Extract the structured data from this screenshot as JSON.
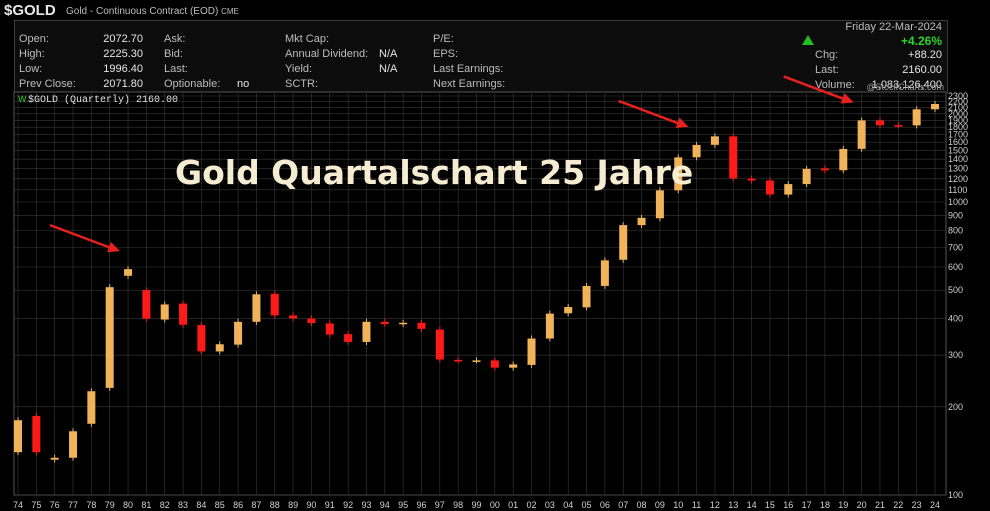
{
  "header": {
    "symbol": "$GOLD",
    "description": "Gold - Continuous Contract (EOD)",
    "exchange": "CME"
  },
  "quote": {
    "col1": [
      {
        "label": "Open:",
        "value": "2072.70"
      },
      {
        "label": "High:",
        "value": "2225.30"
      },
      {
        "label": "Low:",
        "value": "1996.40"
      },
      {
        "label": "Prev Close:",
        "value": "2071.80"
      }
    ],
    "col2": [
      {
        "label": "Ask:",
        "value": ""
      },
      {
        "label": "Bid:",
        "value": ""
      },
      {
        "label": "Last:",
        "value": ""
      },
      {
        "label": "Optionable:",
        "value": "no"
      }
    ],
    "col3": [
      {
        "label": "Mkt Cap:",
        "value": ""
      },
      {
        "label": "Annual Dividend:",
        "value": "N/A"
      },
      {
        "label": "Yield:",
        "value": "N/A"
      },
      {
        "label": "SCTR:",
        "value": ""
      }
    ],
    "col4": [
      {
        "label": "P/E:",
        "value": ""
      },
      {
        "label": "EPS:",
        "value": ""
      },
      {
        "label": "Last Earnings:",
        "value": ""
      },
      {
        "label": "Next Earnings:",
        "value": ""
      }
    ],
    "date": "Friday  22-Mar-2024",
    "change_pct": "+4.26%",
    "chg_label": "Chg:",
    "chg_value": "+88.20",
    "last_label": "Last:",
    "last_value": "2160.00",
    "volume_label": "Volume:",
    "volume_value": "1,083,126,400"
  },
  "legend": "$GOLD (Quarterly) 2160.00",
  "watermark": "@StockCharts.com",
  "overlay_title": "Gold Quartalschart 25 Jahre",
  "colors": {
    "up": "#f0b35a",
    "down": "#ff1a1a",
    "grid": "#3a3a3a",
    "arrow": "#e8201e",
    "title": "#f6ecd2"
  },
  "chart_data": {
    "type": "candlestick",
    "scale": "log",
    "ylim": [
      100,
      2300
    ],
    "y_ticks": [
      100,
      200,
      300,
      400,
      500,
      600,
      700,
      800,
      900,
      1000,
      1100,
      1200,
      1300,
      1400,
      1500,
      1600,
      1700,
      1800,
      1900,
      2000,
      2100,
      2200,
      2300
    ],
    "x_ticks": [
      "74",
      "75",
      "76",
      "77",
      "78",
      "79",
      "80",
      "81",
      "82",
      "83",
      "84",
      "85",
      "86",
      "87",
      "88",
      "89",
      "90",
      "91",
      "92",
      "93",
      "94",
      "95",
      "96",
      "97",
      "98",
      "99",
      "00",
      "01",
      "02",
      "03",
      "04",
      "05",
      "06",
      "07",
      "08",
      "09",
      "10",
      "11",
      "12",
      "13",
      "14",
      "15",
      "16",
      "17",
      "18",
      "19",
      "20",
      "21",
      "22",
      "23",
      "24"
    ],
    "annotated_peaks": [
      "80",
      "11",
      "20"
    ],
    "series": [
      {
        "values": [
          [
            "74",
            140,
            180
          ],
          [
            "75",
            186,
            140
          ],
          [
            "76",
            132,
            134
          ],
          [
            "77",
            134,
            165
          ],
          [
            "78",
            175,
            226
          ],
          [
            "79",
            232,
            512
          ],
          [
            "80",
            560,
            590
          ],
          [
            "81",
            500,
            400
          ],
          [
            "82",
            397,
            447
          ],
          [
            "83",
            450,
            381
          ],
          [
            "84",
            380,
            309
          ],
          [
            "85",
            309,
            327
          ],
          [
            "86",
            326,
            390
          ],
          [
            "87",
            390,
            484
          ],
          [
            "88",
            486,
            410
          ],
          [
            "89",
            410,
            401
          ],
          [
            "90",
            400,
            386
          ],
          [
            "91",
            385,
            353
          ],
          [
            "92",
            354,
            333
          ],
          [
            "93",
            333,
            390
          ],
          [
            "94",
            390,
            383
          ],
          [
            "95",
            383,
            387
          ],
          [
            "96",
            387,
            369
          ],
          [
            "97",
            367,
            290
          ],
          [
            "98",
            289,
            288
          ],
          [
            "99",
            288,
            288
          ],
          [
            "00",
            288,
            272
          ],
          [
            "01",
            272,
            279
          ],
          [
            "02",
            278,
            342
          ],
          [
            "03",
            342,
            416
          ],
          [
            "04",
            417,
            438
          ],
          [
            "05",
            437,
            517
          ],
          [
            "06",
            517,
            632
          ],
          [
            "07",
            635,
            834
          ],
          [
            "08",
            834,
            883
          ],
          [
            "09",
            880,
            1096
          ],
          [
            "10",
            1096,
            1420
          ],
          [
            "11",
            1421,
            1566
          ],
          [
            "12",
            1567,
            1675
          ],
          [
            "13",
            1675,
            1204
          ],
          [
            "14",
            1202,
            1184
          ],
          [
            "15",
            1184,
            1061
          ],
          [
            "16",
            1060,
            1151
          ],
          [
            "17",
            1151,
            1297
          ],
          [
            "18",
            1302,
            1282
          ],
          [
            "19",
            1283,
            1517
          ],
          [
            "20",
            1518,
            1898
          ],
          [
            "21",
            1898,
            1828
          ],
          [
            "22",
            1829,
            1826
          ],
          [
            "23",
            1826,
            2072
          ],
          [
            "24",
            2072,
            2160
          ]
        ]
      }
    ]
  }
}
